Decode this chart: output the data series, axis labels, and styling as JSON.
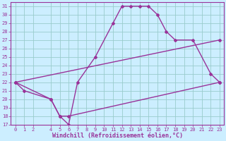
{
  "xlabel": "Windchill (Refroidissement éolien,°C)",
  "bg_color": "#cceeff",
  "grid_color": "#99cccc",
  "line_color": "#993399",
  "spine_color": "#993399",
  "xlim": [
    -0.5,
    23.5
  ],
  "ylim": [
    17,
    31.5
  ],
  "xticks": [
    0,
    1,
    2,
    4,
    5,
    6,
    7,
    8,
    9,
    10,
    11,
    12,
    13,
    14,
    15,
    16,
    17,
    18,
    19,
    20,
    21,
    22,
    23
  ],
  "yticks": [
    17,
    18,
    19,
    20,
    21,
    22,
    23,
    24,
    25,
    26,
    27,
    28,
    29,
    30,
    31
  ],
  "line1_x": [
    0,
    1,
    4,
    5,
    6,
    7,
    9,
    11,
    12,
    13,
    14,
    15,
    16,
    17,
    18,
    20,
    22,
    23
  ],
  "line1_y": [
    22,
    21,
    20,
    18,
    17,
    22,
    25,
    29,
    31,
    31,
    31,
    31,
    30,
    28,
    27,
    27,
    23,
    22
  ],
  "line2_x": [
    0,
    23
  ],
  "line2_y": [
    22,
    27
  ],
  "line3_x": [
    0,
    4,
    5,
    6,
    23
  ],
  "line3_y": [
    22,
    20,
    18,
    18,
    22
  ],
  "xlabel_fontsize": 6,
  "tick_fontsize": 5,
  "linewidth": 1.0,
  "markersize": 2.0
}
